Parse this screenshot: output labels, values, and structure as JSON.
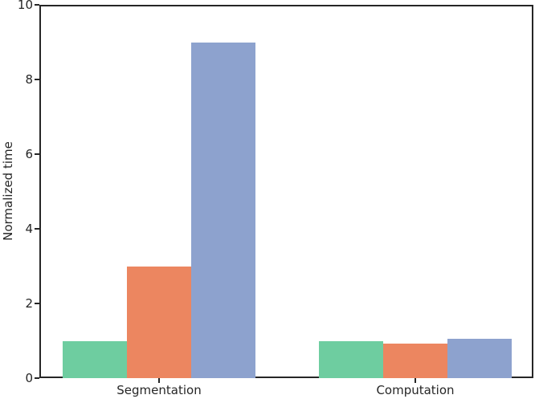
{
  "chart_data": {
    "type": "bar",
    "title": "",
    "categories": [
      "Segmentation",
      "Computation"
    ],
    "series": [
      {
        "name": "green-series",
        "color": "#6ecda0",
        "values": [
          1.0,
          1.0
        ]
      },
      {
        "name": "orange-series",
        "color": "#ec8660",
        "values": [
          3.0,
          0.92
        ]
      },
      {
        "name": "blue-series",
        "color": "#8da2ce",
        "values": [
          9.0,
          1.05
        ]
      }
    ],
    "xlabel": "",
    "ylabel": "Normalized time",
    "ylim": [
      0,
      10
    ],
    "yticks": [
      0,
      2,
      4,
      6,
      8,
      10
    ],
    "grid": false,
    "legend": null,
    "colors": {
      "axis": "#262626",
      "text": "#262626",
      "background": "#ffffff"
    }
  }
}
